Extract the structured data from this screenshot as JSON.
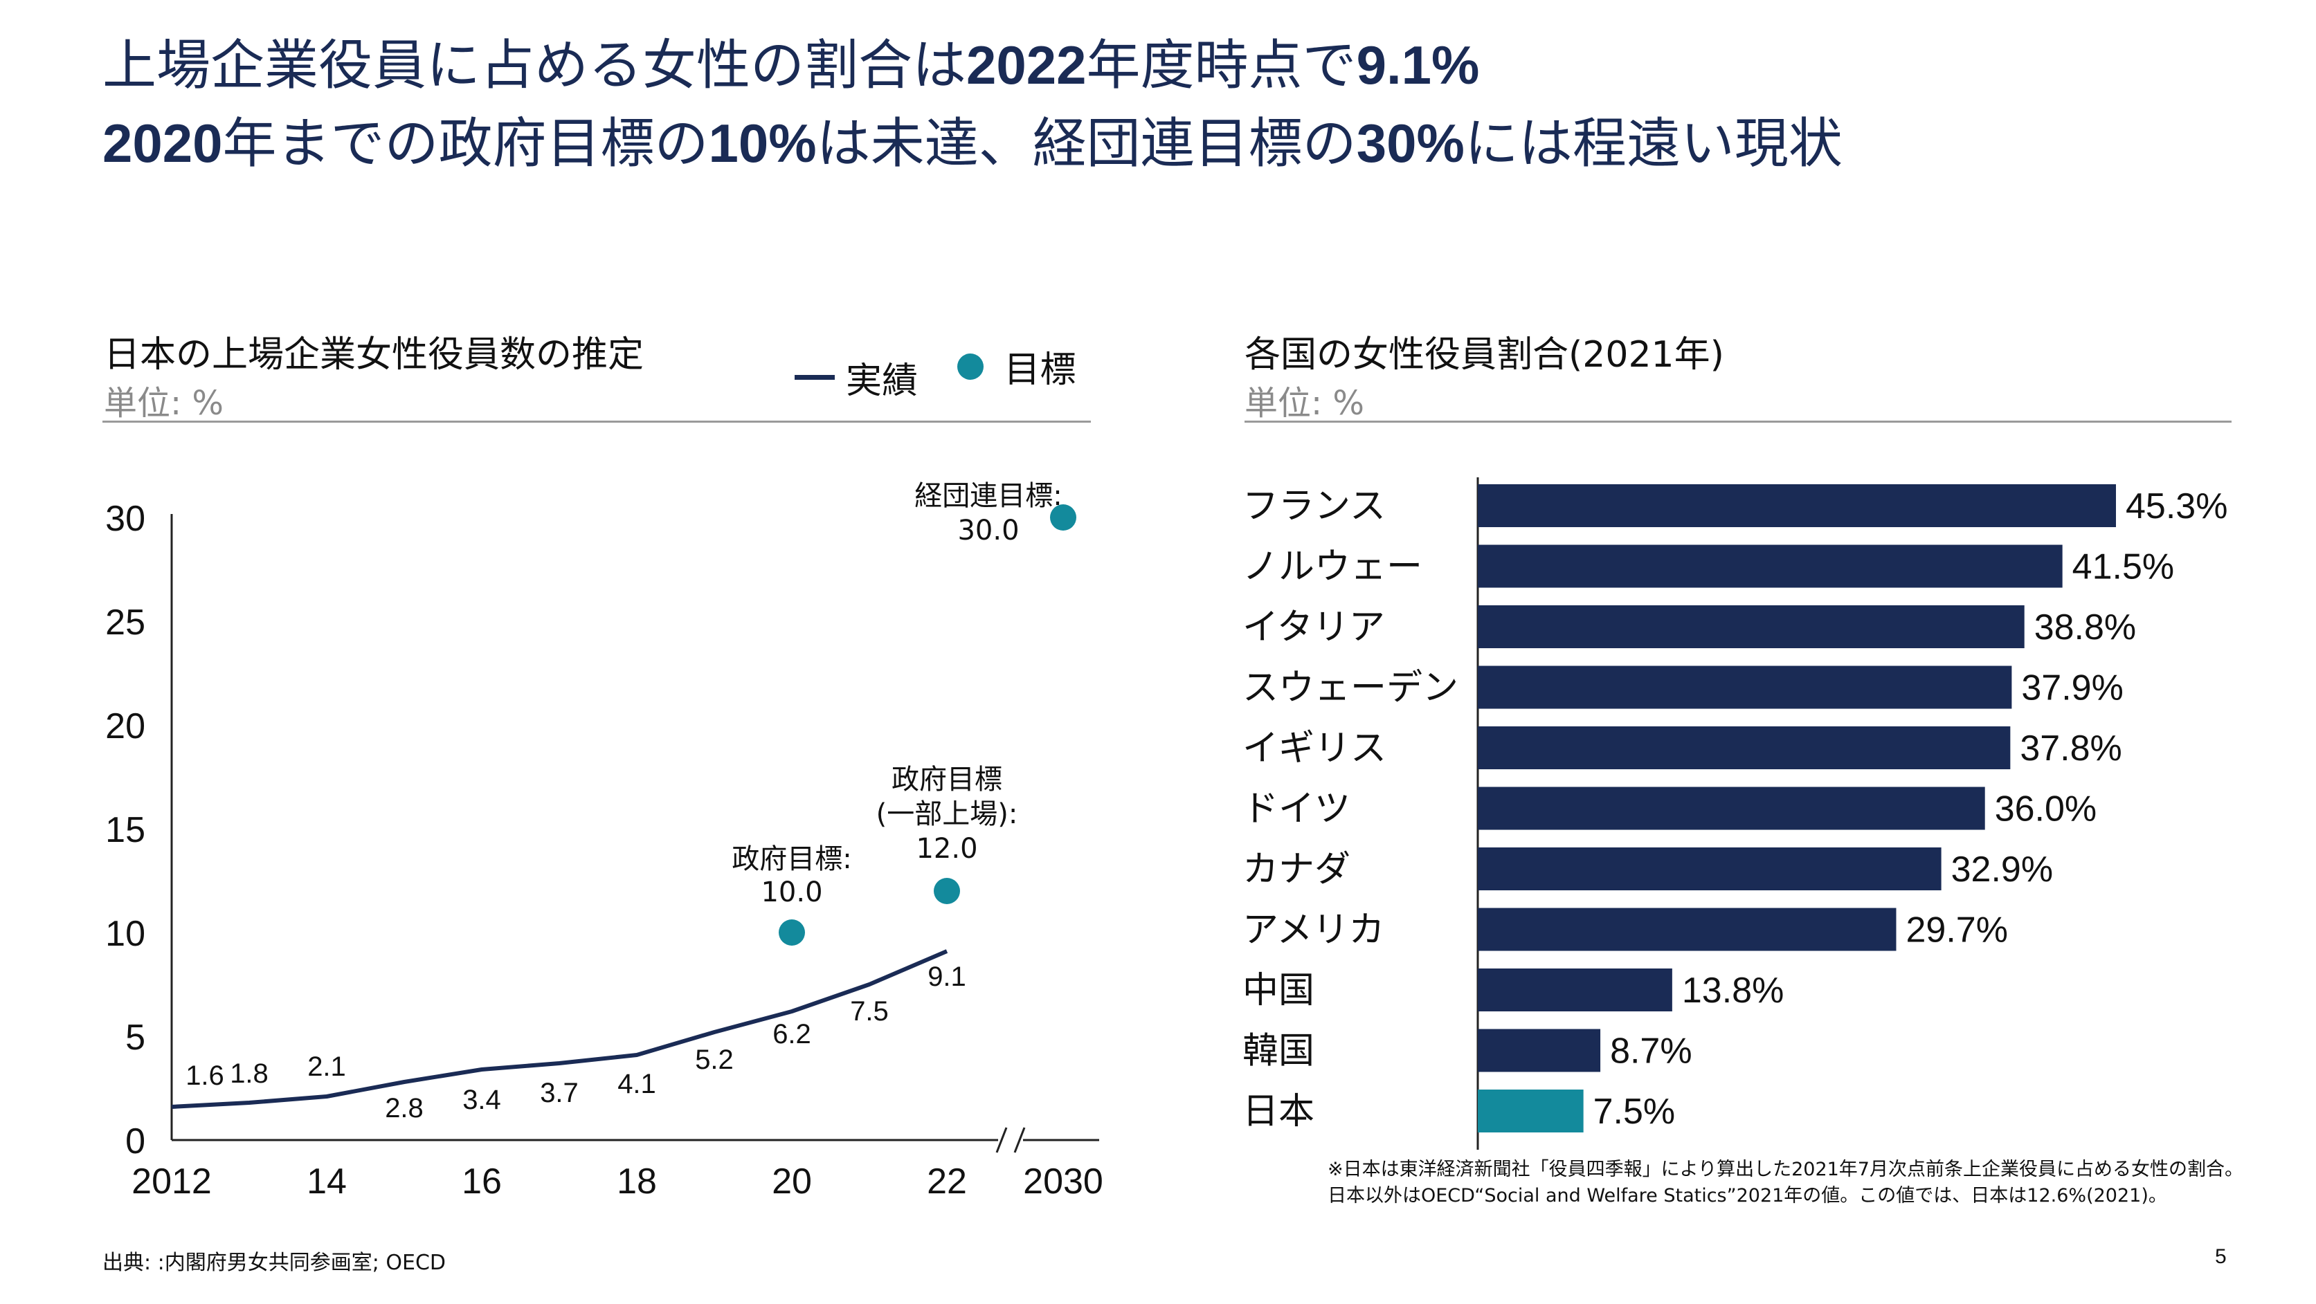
{
  "headline": {
    "line1_a": "上場企業役員に占める女性の割合は",
    "line1_b": "2022",
    "line1_c": "年度時点で",
    "line1_d": "9.1%",
    "line2_a": "2020",
    "line2_b": "年までの政府目標の",
    "line2_c": "10%",
    "line2_d": "は未達、経団連目標の",
    "line2_e": "30%",
    "line2_f": "には程遠い現状"
  },
  "left_panel": {
    "title": "日本の上場企業女性役員数の推定",
    "unit": "単位: %",
    "legend_actual": "実績",
    "legend_target": "目標"
  },
  "right_panel": {
    "title": "各国の女性役員割合(2021年)",
    "unit": "単位: %"
  },
  "footnote": {
    "line1": "※日本は東洋経済新聞社「役員四季報」により算出した2021年7月次点前条上企業役員に占める女性の割合。",
    "line2": "日本以外はOECD“Social and Welfare Statics”2021年の値。この値では、日本は12.6%(2021)。"
  },
  "source": "出典: :内閣府男女共同参画室; OECD",
  "page_number": "5",
  "colors": {
    "navy": "#1a2b55",
    "teal": "#138a9c",
    "grey_rule": "#9a9a9a"
  },
  "chart_data": [
    {
      "type": "line",
      "title": "日本の上場企業女性役員数の推定",
      "ylabel": "単位: %",
      "ylim": [
        0,
        30
      ],
      "yticks": [
        "0",
        "5",
        "10",
        "15",
        "20",
        "25",
        "30"
      ],
      "x": [
        2012,
        2013,
        2014,
        2015,
        2016,
        2017,
        2018,
        2019,
        2020,
        2021,
        2022
      ],
      "xtick_labels": [
        "2012",
        "14",
        "16",
        "18",
        "20",
        "22",
        "2030"
      ],
      "series": [
        {
          "name": "実績",
          "values": [
            1.6,
            1.8,
            2.1,
            2.8,
            3.4,
            3.7,
            4.1,
            5.2,
            6.2,
            7.5,
            9.1
          ],
          "labels": [
            "1.6",
            "1.8",
            "2.1",
            "2.8",
            "3.4",
            "3.7",
            "4.1",
            "5.2",
            "6.2",
            "7.5",
            "9.1"
          ]
        }
      ],
      "targets": [
        {
          "x": 2020,
          "value": 10.0,
          "label_lines": [
            "政府目標:",
            "10.0"
          ]
        },
        {
          "x": 2022,
          "value": 12.0,
          "label_lines": [
            "政府目標",
            "(一部上場):",
            "12.0"
          ]
        },
        {
          "x": 2030,
          "value": 30.0,
          "label_lines": [
            "経団連目標:",
            "30.0"
          ]
        }
      ],
      "axis_break": true
    },
    {
      "type": "bar",
      "orientation": "horizontal",
      "title": "各国の女性役員割合(2021年)",
      "ylabel": "単位: %",
      "xlim": [
        0,
        45.3
      ],
      "categories": [
        "フランス",
        "ノルウェー",
        "イタリア",
        "スウェーデン",
        "イギリス",
        "ドイツ",
        "カナダ",
        "アメリカ",
        "中国",
        "韓国",
        "日本"
      ],
      "values": [
        45.3,
        41.5,
        38.8,
        37.9,
        37.8,
        36.0,
        32.9,
        29.7,
        13.8,
        8.7,
        7.5
      ],
      "value_labels": [
        "45.3%",
        "41.5%",
        "38.8%",
        "37.9%",
        "37.8%",
        "36.0%",
        "32.9%",
        "29.7%",
        "13.8%",
        "8.7%",
        "7.5%"
      ],
      "highlight": "日本"
    }
  ]
}
